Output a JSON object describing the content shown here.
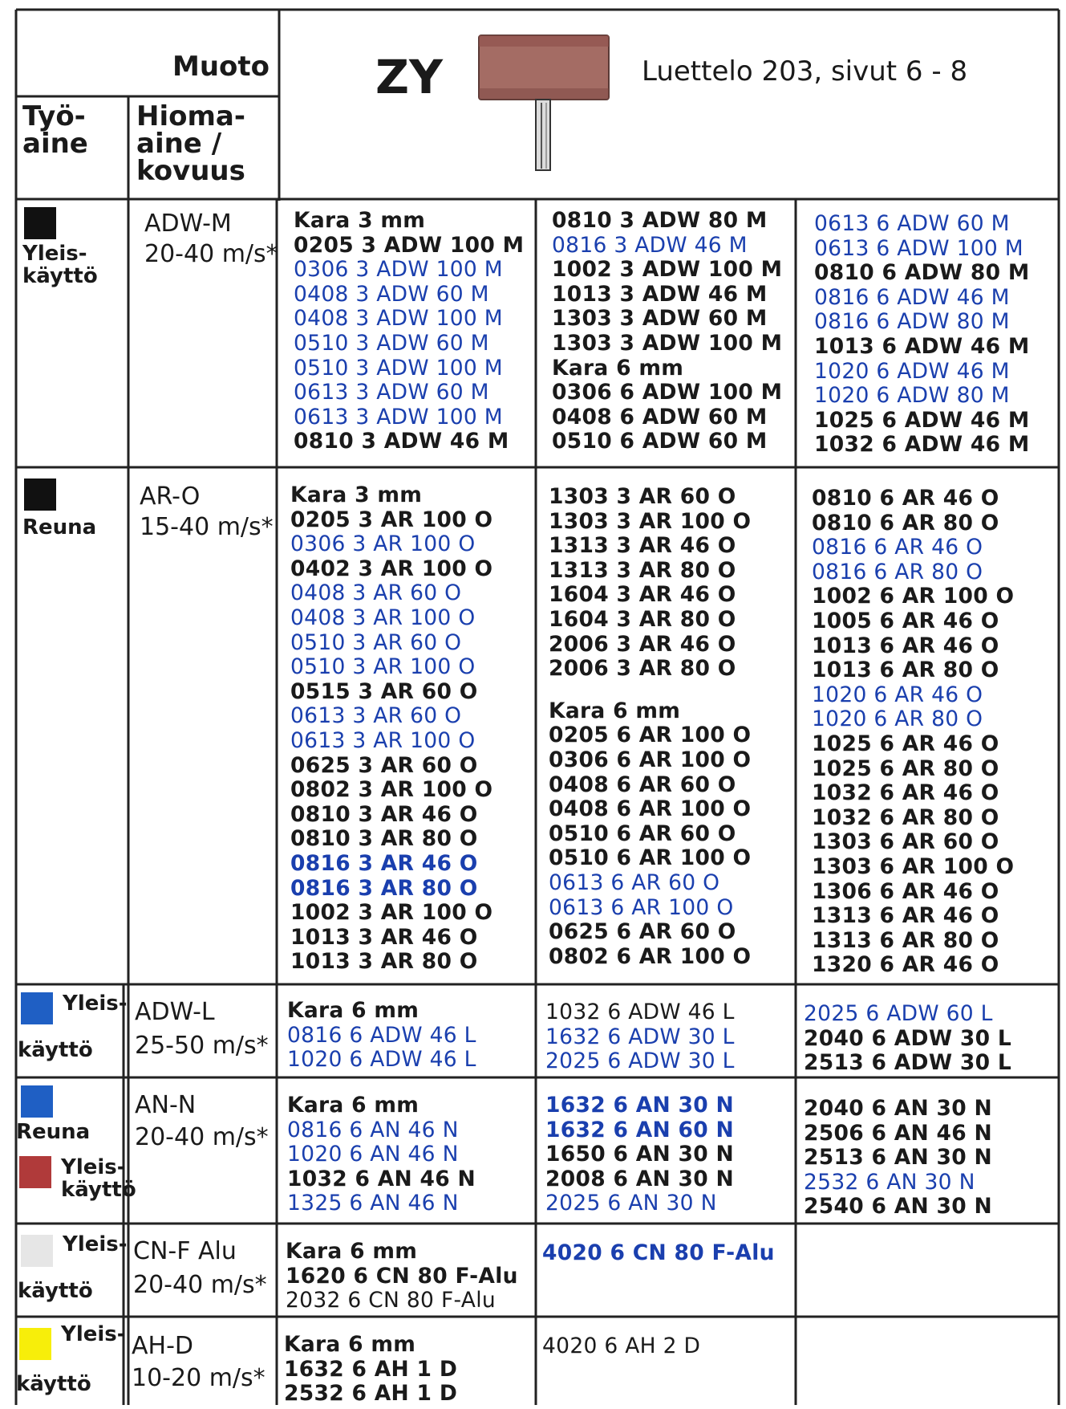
{
  "header": {
    "muoto": "Muoto",
    "shape_code": "ZY",
    "catalog_ref": "Luettelo 203, sivut 6 - 8",
    "workpiece_label": "Työ-\naine",
    "abrasive_label": "Hioma-\naine /\nkovuus"
  },
  "legend_colors": {
    "black": "#111111",
    "blue": "#1f5fc4",
    "red": "#b03a3a",
    "lightgray": "#e6e6e6",
    "yellow": "#f7ee0a",
    "text_blue": "#1a3fae"
  },
  "rows": [
    {
      "material": "Yleis-\nkäyttö",
      "abrasive": "ADW-M",
      "speed": "20-40 m/s*",
      "columns": [
        [
          {
            "text": "Kara 3 mm",
            "style": "h"
          },
          {
            "text": "0205 3 ADW 100 M",
            "style": "b"
          },
          {
            "text": "0306 3 ADW 100 M",
            "style": "u"
          },
          {
            "text": "0408 3 ADW 60 M",
            "style": "u"
          },
          {
            "text": "0408 3 ADW 100 M",
            "style": "u"
          },
          {
            "text": "0510 3 ADW 60 M",
            "style": "u"
          },
          {
            "text": "0510 3 ADW 100 M",
            "style": "u"
          },
          {
            "text": "0613 3 ADW 60 M",
            "style": "u"
          },
          {
            "text": "0613 3 ADW 100 M",
            "style": "u"
          },
          {
            "text": "0810 3 ADW 46 M",
            "style": "b"
          }
        ],
        [
          {
            "text": "0810 3 ADW 80 M",
            "style": "b"
          },
          {
            "text": "0816 3 ADW 46 M",
            "style": "u"
          },
          {
            "text": "1002 3 ADW 100 M",
            "style": "b"
          },
          {
            "text": "1013 3 ADW 46 M",
            "style": "b"
          },
          {
            "text": "1303 3 ADW 60 M",
            "style": "b"
          },
          {
            "text": "1303 3 ADW 100 M",
            "style": "b"
          },
          {
            "text": "Kara 6 mm",
            "style": "h"
          },
          {
            "text": "0306 6 ADW 100 M",
            "style": "b"
          },
          {
            "text": "0408 6 ADW 60 M",
            "style": "b"
          },
          {
            "text": "0510 6 ADW 60 M",
            "style": "b"
          }
        ],
        [
          {
            "text": "0613 6 ADW 60 M",
            "style": "u"
          },
          {
            "text": "0613 6 ADW 100 M",
            "style": "u"
          },
          {
            "text": "0810 6 ADW 80 M",
            "style": "b"
          },
          {
            "text": "0816 6 ADW 46 M",
            "style": "u"
          },
          {
            "text": "0816 6 ADW 80 M",
            "style": "u"
          },
          {
            "text": "1013 6 ADW 46 M",
            "style": "b"
          },
          {
            "text": "1020 6 ADW 46 M",
            "style": "u"
          },
          {
            "text": "1020 6 ADW 80 M",
            "style": "u"
          },
          {
            "text": "1025 6 ADW 46 M",
            "style": "b"
          },
          {
            "text": "1032 6 ADW 46 M",
            "style": "b"
          }
        ]
      ]
    },
    {
      "material": "Reuna",
      "abrasive": "AR-O",
      "speed": "15-40 m/s*",
      "columns": [
        [
          {
            "text": "Kara 3 mm",
            "style": "h"
          },
          {
            "text": "0205 3 AR 100 O",
            "style": "b"
          },
          {
            "text": "0306 3 AR 100 O",
            "style": "u"
          },
          {
            "text": "0402 3 AR 100 O",
            "style": "b"
          },
          {
            "text": "0408 3 AR 60 O",
            "style": "u"
          },
          {
            "text": "0408 3 AR 100 O",
            "style": "u"
          },
          {
            "text": "0510 3 AR 60 O",
            "style": "u"
          },
          {
            "text": "0510 3 AR 100 O",
            "style": "u"
          },
          {
            "text": "0515 3 AR 60 O",
            "style": "b"
          },
          {
            "text": "0613 3 AR 60 O",
            "style": "u"
          },
          {
            "text": "0613 3 AR 100 O",
            "style": "u"
          },
          {
            "text": "0625 3 AR 60 O",
            "style": "b"
          },
          {
            "text": "0802 3 AR 100 O",
            "style": "b"
          },
          {
            "text": "0810 3 AR 46 O",
            "style": "b"
          },
          {
            "text": "0810 3 AR 80 O",
            "style": "b"
          },
          {
            "text": "0816 3 AR 46 O",
            "style": "ub"
          },
          {
            "text": "0816 3 AR 80 O",
            "style": "ub"
          },
          {
            "text": "1002 3 AR 100 O",
            "style": "b"
          },
          {
            "text": "1013 3 AR 46 O",
            "style": "b"
          },
          {
            "text": "1013 3 AR 80 O",
            "style": "b"
          }
        ],
        [
          {
            "text": "1303 3 AR 60 O",
            "style": "b"
          },
          {
            "text": "1303 3 AR 100 O",
            "style": "b"
          },
          {
            "text": "1313 3 AR 46 O",
            "style": "b"
          },
          {
            "text": "1313 3 AR 80 O",
            "style": "b"
          },
          {
            "text": "1604 3 AR 46 O",
            "style": "b"
          },
          {
            "text": "1604 3 AR 80 O",
            "style": "b"
          },
          {
            "text": "2006 3 AR 46 O",
            "style": "b"
          },
          {
            "text": "2006 3 AR 80 O",
            "style": "b"
          },
          {
            "text": "",
            "style": "gap"
          },
          {
            "text": "Kara 6 mm",
            "style": "h"
          },
          {
            "text": "0205 6 AR 100 O",
            "style": "b"
          },
          {
            "text": "0306 6 AR 100 O",
            "style": "b"
          },
          {
            "text": "0408 6 AR 60 O",
            "style": "b"
          },
          {
            "text": "0408 6 AR 100 O",
            "style": "b"
          },
          {
            "text": "0510 6 AR 60 O",
            "style": "b"
          },
          {
            "text": "0510 6 AR 100 O",
            "style": "b"
          },
          {
            "text": "0613 6 AR 60 O",
            "style": "u"
          },
          {
            "text": "0613 6 AR 100 O",
            "style": "u"
          },
          {
            "text": "0625 6 AR 60 O",
            "style": "b"
          },
          {
            "text": "0802 6 AR 100 O",
            "style": "b"
          }
        ],
        [
          {
            "text": "0810 6 AR 46 O",
            "style": "b"
          },
          {
            "text": "0810 6 AR 80 O",
            "style": "b"
          },
          {
            "text": "0816 6 AR 46 O",
            "style": "u"
          },
          {
            "text": "0816 6 AR 80 O",
            "style": "u"
          },
          {
            "text": "1002 6 AR 100 O",
            "style": "b"
          },
          {
            "text": "1005 6 AR 46 O",
            "style": "b"
          },
          {
            "text": "1013 6 AR 46 O",
            "style": "b"
          },
          {
            "text": "1013 6 AR 80 O",
            "style": "b"
          },
          {
            "text": "1020 6 AR 46 O",
            "style": "u"
          },
          {
            "text": "1020 6 AR 80 O",
            "style": "u"
          },
          {
            "text": "1025 6 AR 46 O",
            "style": "b"
          },
          {
            "text": "1025 6 AR 80 O",
            "style": "b"
          },
          {
            "text": "1032 6 AR 46 O",
            "style": "b"
          },
          {
            "text": "1032 6 AR 80 O",
            "style": "b"
          },
          {
            "text": "1303 6 AR 60 O",
            "style": "b"
          },
          {
            "text": "1303 6 AR 100 O",
            "style": "b"
          },
          {
            "text": "1306 6 AR 46 O",
            "style": "b"
          },
          {
            "text": "1313 6 AR 46 O",
            "style": "b"
          },
          {
            "text": "1313 6 AR 80 O",
            "style": "b"
          },
          {
            "text": "1320 6 AR 46 O",
            "style": "b"
          }
        ]
      ]
    },
    {
      "material_top": "Yleis-",
      "material_bottom": "käyttö",
      "abrasive": "ADW-L",
      "speed": "25-50 m/s*",
      "columns": [
        [
          {
            "text": "Kara 6 mm",
            "style": "h"
          },
          {
            "text": "0816 6 ADW 46 L",
            "style": "u"
          },
          {
            "text": "1020 6 ADW 46 L",
            "style": "u"
          }
        ],
        [
          {
            "text": "1032 6 ADW 46 L",
            "style": "k"
          },
          {
            "text": "1632 6 ADW 30 L",
            "style": "u"
          },
          {
            "text": "2025 6 ADW 30 L",
            "style": "u"
          }
        ],
        [
          {
            "text": "2025 6 ADW 60 L",
            "style": "u"
          },
          {
            "text": "2040 6 ADW 30 L",
            "style": "b"
          },
          {
            "text": "2513 6 ADW 30 L",
            "style": "b"
          }
        ]
      ]
    },
    {
      "material_a": "Reuna",
      "material_b": "Yleis-\nkäyttö",
      "abrasive": "AN-N",
      "speed": "20-40 m/s*",
      "columns": [
        [
          {
            "text": "Kara 6 mm",
            "style": "h"
          },
          {
            "text": "0816 6 AN 46 N",
            "style": "u"
          },
          {
            "text": "1020 6 AN 46 N",
            "style": "u"
          },
          {
            "text": "1032 6 AN 46 N",
            "style": "b"
          },
          {
            "text": "1325 6 AN 46 N",
            "style": "u"
          }
        ],
        [
          {
            "text": "1632 6 AN 30 N",
            "style": "ub"
          },
          {
            "text": "1632 6 AN 60 N",
            "style": "ub"
          },
          {
            "text": "1650 6 AN 30 N",
            "style": "b"
          },
          {
            "text": "2008 6 AN 30 N",
            "style": "b"
          },
          {
            "text": "2025 6 AN 30 N",
            "style": "u"
          }
        ],
        [
          {
            "text": "2040 6 AN 30 N",
            "style": "b"
          },
          {
            "text": "2506 6 AN 46 N",
            "style": "b"
          },
          {
            "text": "2513 6 AN 30 N",
            "style": "b"
          },
          {
            "text": "2532 6 AN 30 N",
            "style": "u"
          },
          {
            "text": "2540 6 AN 30 N",
            "style": "b"
          }
        ]
      ]
    },
    {
      "material_top": "Yleis-",
      "material_bottom": "käyttö",
      "abrasive": "CN-F Alu",
      "speed": "20-40 m/s*",
      "columns": [
        [
          {
            "text": "Kara 6 mm",
            "style": "h"
          },
          {
            "text": "1620 6 CN 80 F-Alu",
            "style": "b"
          },
          {
            "text": "2032 6 CN 80 F-Alu",
            "style": "k"
          }
        ],
        [
          {
            "text": "4020 6 CN 80 F-Alu",
            "style": "ub"
          }
        ],
        []
      ]
    },
    {
      "material_top": "Yleis-",
      "material_bottom": "käyttö",
      "abrasive": "AH-D",
      "speed": "10-20 m/s*",
      "columns": [
        [
          {
            "text": "Kara 6 mm",
            "style": "h"
          },
          {
            "text": "1632 6 AH 1 D",
            "style": "b"
          },
          {
            "text": "2532 6 AH 1 D",
            "style": "b"
          }
        ],
        [
          {
            "text": "4020 6 AH 2 D",
            "style": "k"
          }
        ],
        []
      ]
    }
  ]
}
